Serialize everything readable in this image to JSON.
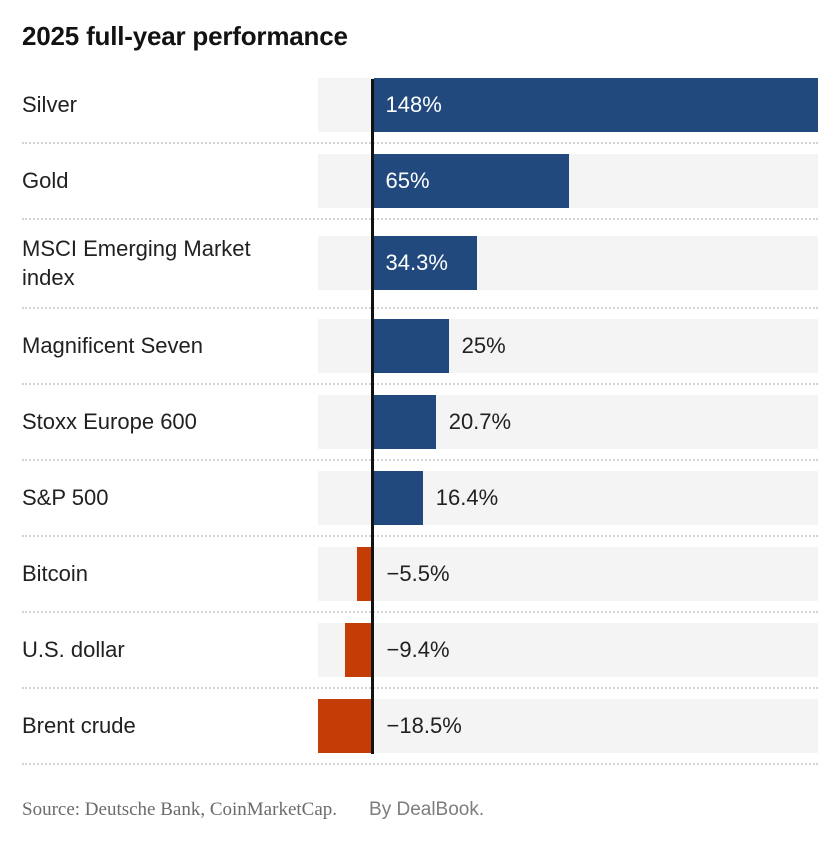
{
  "header": {
    "title": "2025 full-year performance"
  },
  "source": {
    "prefix": "Source: Deutsche Bank, CoinMarketCap.",
    "byline": "By DealBook."
  },
  "colors": {
    "positive_bar": "#21497e",
    "negative_bar": "#c43d06",
    "track": "#f4f4f4",
    "baseline": "#121212",
    "separator": "#d4d4d4",
    "title_text": "#121212",
    "label_text": "#212121",
    "value_inside_text": "#ffffff",
    "source_text": "#6b6b6b",
    "byline_text": "#7d7d7d"
  },
  "chart_data": {
    "type": "bar",
    "orientation": "horizontal",
    "title": "2025 full-year performance",
    "xlabel": "",
    "ylabel": "",
    "xlim": [
      -18.5,
      148
    ],
    "grid": false,
    "legend": false,
    "categories": [
      "Silver",
      "Gold",
      "MSCI Emerging Market index",
      "Magnificent Seven",
      "Stoxx Europe 600",
      "S&P 500",
      "Bitcoin",
      "U.S. dollar",
      "Brent crude"
    ],
    "values": [
      148,
      65,
      34.3,
      25,
      20.7,
      16.4,
      -5.5,
      -9.4,
      -18.5
    ],
    "value_labels": [
      "148%",
      "65%",
      "34.3%",
      "25%",
      "20.7%",
      "16.4%",
      "−5.5%",
      "−9.4%",
      "−18.5%"
    ],
    "label_positions": [
      "inside",
      "inside",
      "inside",
      "outside",
      "outside",
      "outside",
      "outside",
      "outside",
      "outside"
    ]
  }
}
